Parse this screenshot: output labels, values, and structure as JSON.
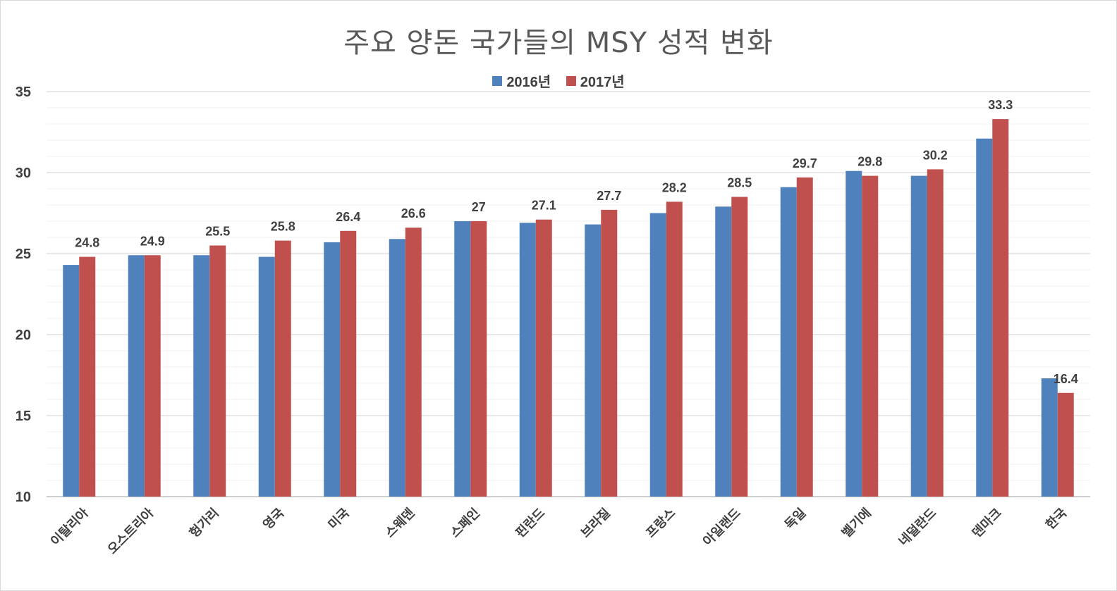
{
  "chart_data": {
    "type": "bar",
    "title": "주요 양돈 국가들의 MSY 성적 변화",
    "xlabel": "",
    "ylabel": "",
    "ylim": [
      10,
      35
    ],
    "yticks": [
      10,
      15,
      20,
      25,
      30,
      35
    ],
    "grid": true,
    "legend_position": "top",
    "categories": [
      "이탈리아",
      "오스트리아",
      "헝가리",
      "영국",
      "미국",
      "스웨덴",
      "스페인",
      "핀란드",
      "브라질",
      "프랑스",
      "아일랜드",
      "독일",
      "벨기에",
      "네덜란드",
      "덴마크",
      "한국"
    ],
    "series": [
      {
        "name": "2016년",
        "color": "#4f81bd",
        "values": [
          24.3,
          24.9,
          24.9,
          24.8,
          25.7,
          25.9,
          27.0,
          26.9,
          26.8,
          27.5,
          27.9,
          29.1,
          30.1,
          29.8,
          32.1,
          17.3
        ]
      },
      {
        "name": "2017년",
        "color": "#c0504d",
        "values": [
          24.8,
          24.9,
          25.5,
          25.8,
          26.4,
          26.6,
          27,
          27.1,
          27.7,
          28.2,
          28.5,
          29.7,
          29.8,
          30.2,
          33.3,
          16.4
        ]
      }
    ],
    "data_labels": [
      "24.8",
      "24.9",
      "25.5",
      "25.8",
      "26.4",
      "26.6",
      "27",
      "27.1",
      "27.7",
      "28.2",
      "28.5",
      "29.7",
      "29.8",
      "30.2",
      "33.3",
      "16.4"
    ]
  }
}
